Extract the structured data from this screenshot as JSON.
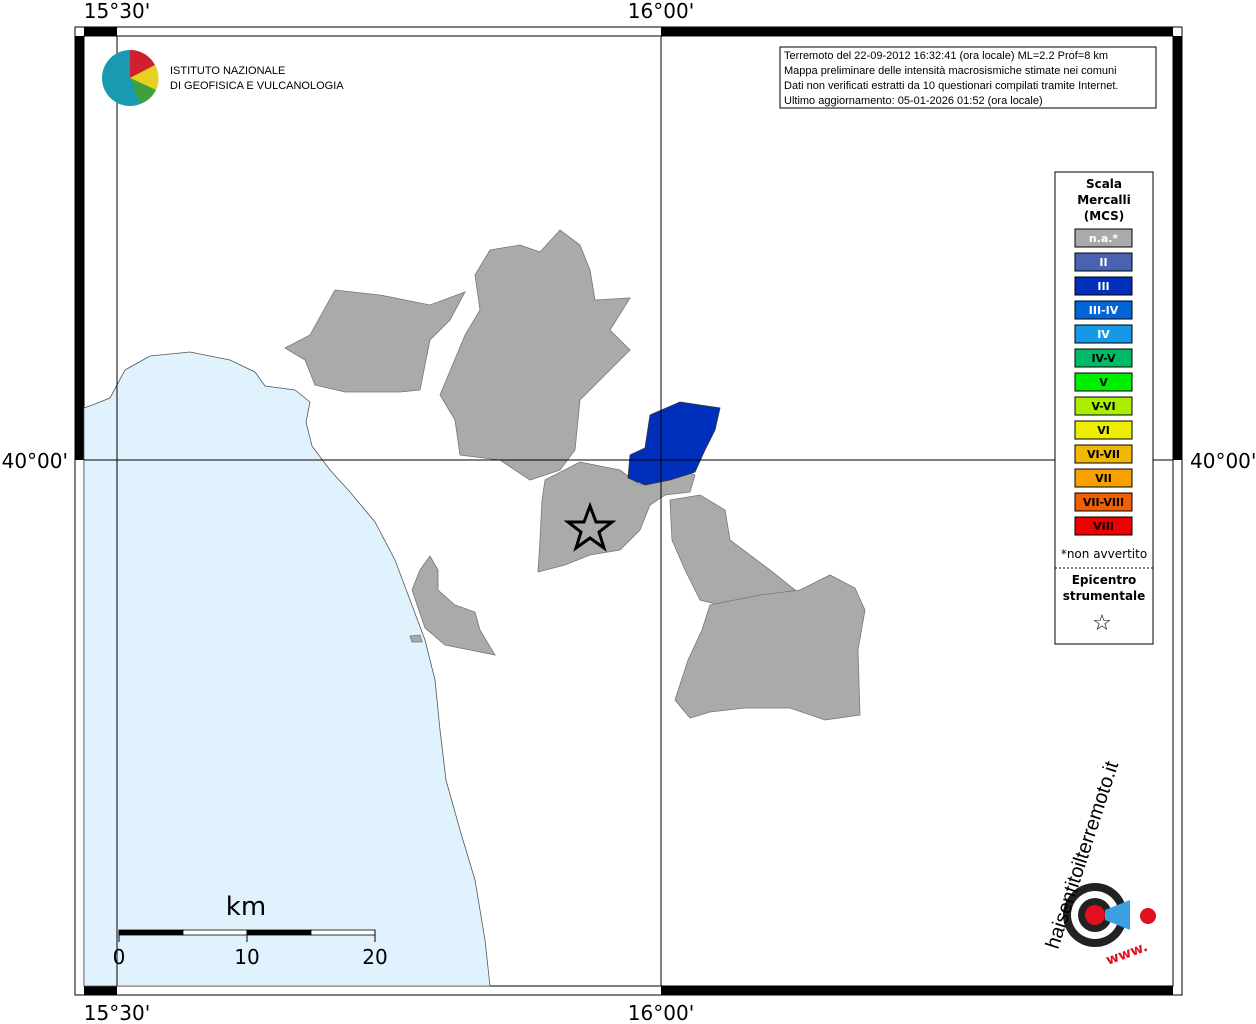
{
  "axes": {
    "top": [
      "15°30'",
      "16°00'"
    ],
    "bottom": [
      "15°30'",
      "16°00'"
    ],
    "left": "40°00'",
    "right": "40°00'"
  },
  "logo": {
    "line1": "ISTITUTO NAZIONALE",
    "line2": "DI GEOFISICA E VULCANOLOGIA"
  },
  "info_box": [
    "Terremoto del 22-09-2012 16:32:41 (ora locale) ML=2.2 Prof=8 km",
    "Mappa preliminare delle intensità macrosismiche stimate nei comuni",
    "Dati non verificati estratti da 10 questionari compilati tramite Internet.",
    "Ultimo aggiornamento: 05-01-2026 01:52 (ora locale)"
  ],
  "legend": {
    "title": [
      "Scala",
      "Mercalli",
      "(MCS)"
    ],
    "items": [
      {
        "label": "n.a.*",
        "color": "#aaaaaa"
      },
      {
        "label": "II",
        "color": "#4a63b0"
      },
      {
        "label": "III",
        "color": "#0030bb"
      },
      {
        "label": "III-IV",
        "color": "#0066d8"
      },
      {
        "label": "IV",
        "color": "#1599e6"
      },
      {
        "label": "IV-V",
        "color": "#00bb66"
      },
      {
        "label": "V",
        "color": "#00ee00"
      },
      {
        "label": "V-VI",
        "color": "#aaee00"
      },
      {
        "label": "VI",
        "color": "#eeee00"
      },
      {
        "label": "VI-VII",
        "color": "#f0b800"
      },
      {
        "label": "VII",
        "color": "#f8a000"
      },
      {
        "label": "VII-VIII",
        "color": "#f06000"
      },
      {
        "label": "VIII",
        "color": "#ee0000"
      }
    ],
    "note": "*non avvertito",
    "epicenter": [
      "Epicentro",
      "strumentale"
    ],
    "star": "☆"
  },
  "scale": {
    "unit": "km",
    "ticks": [
      0,
      10,
      20
    ]
  },
  "hsit": {
    "site": "haisentitoilterremoto.it",
    "www": "www."
  }
}
